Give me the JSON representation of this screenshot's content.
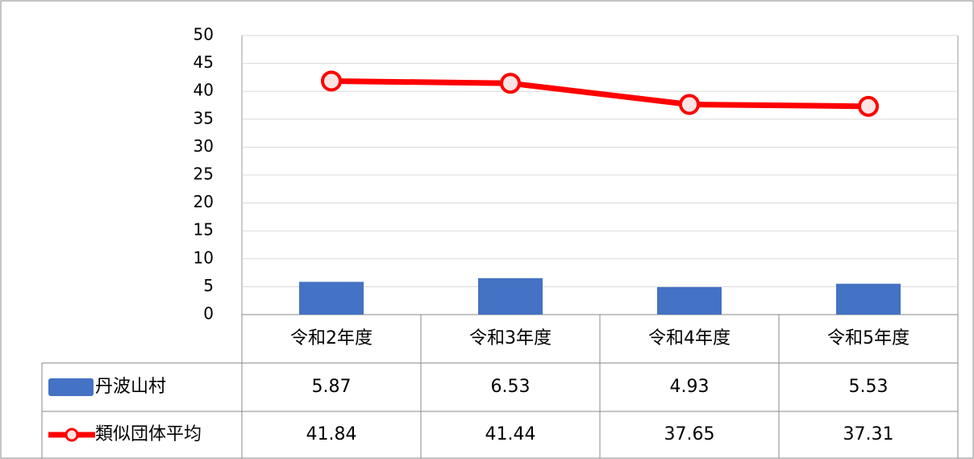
{
  "chart_data": {
    "type": "bar",
    "categories": [
      "令和2年度",
      "令和3年度",
      "令和4年度",
      "令和5年度"
    ],
    "series": [
      {
        "name": "丹波山村",
        "type": "bar",
        "color": "#4472c4",
        "values": [
          5.87,
          6.53,
          4.93,
          5.53
        ]
      },
      {
        "name": "類似団体平均",
        "type": "line",
        "color": "#ff0000",
        "values": [
          41.84,
          41.44,
          37.65,
          37.31
        ]
      }
    ],
    "ylim": [
      0,
      50
    ],
    "yticks": [
      0,
      5,
      10,
      15,
      20,
      25,
      30,
      35,
      40,
      45,
      50
    ],
    "grid": true,
    "data_table": true
  }
}
